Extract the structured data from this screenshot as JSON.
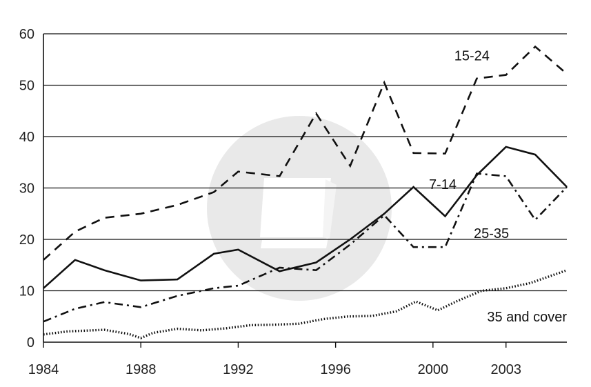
{
  "chart_data": {
    "type": "line",
    "title": "",
    "xlabel": "",
    "ylabel": "",
    "xlim": [
      1984,
      2005.5
    ],
    "ylim": [
      0,
      60
    ],
    "grid": "horizontal",
    "legend": "inline labels",
    "x_ticks": [
      1984,
      1988,
      1992,
      1996,
      2000,
      2003
    ],
    "y_ticks": [
      0,
      10,
      20,
      30,
      40,
      50,
      60
    ],
    "watermark_icon": "book-logo-watermark",
    "series": [
      {
        "name": "15-24",
        "style": "dashed",
        "color": "#111111",
        "x": [
          1984,
          1985.3,
          1986.5,
          1988,
          1989.5,
          1991,
          1992,
          1993.7,
          1995.2,
          1996.6,
          1998,
          1999.2,
          2000.5,
          2001.8,
          2003,
          2004.2,
          2005.5
        ],
        "y": [
          16,
          21.5,
          24.2,
          25,
          26.7,
          29.2,
          33.2,
          32.3,
          44.5,
          34.3,
          50.5,
          36.8,
          36.7,
          51.3,
          52,
          57.5,
          52.2
        ]
      },
      {
        "name": "7-14",
        "style": "solid",
        "color": "#111111",
        "x": [
          1984,
          1985.3,
          1986.5,
          1988,
          1989.5,
          1991,
          1992,
          1993.7,
          1995.2,
          1996.6,
          1998,
          1999.2,
          2000.5,
          2001.8,
          2003,
          2004.2,
          2005.5
        ],
        "y": [
          10.5,
          16,
          14,
          12,
          12.2,
          17.2,
          18,
          13.8,
          15.5,
          20,
          25,
          30.2,
          24.5,
          32.5,
          38,
          36.5,
          30.2
        ]
      },
      {
        "name": "25-35",
        "style": "dash-dot",
        "color": "#111111",
        "x": [
          1984,
          1985.3,
          1986.5,
          1988,
          1989.5,
          1991,
          1992,
          1993.7,
          1995.2,
          1996.6,
          1998,
          1999.2,
          2000.5,
          2001.8,
          2003,
          2004.2,
          2005.5
        ],
        "y": [
          4,
          6.5,
          7.8,
          6.8,
          9,
          10.5,
          11,
          14.5,
          14,
          19,
          24.7,
          18.5,
          18.5,
          32.8,
          32.3,
          23.8,
          30.2
        ]
      },
      {
        "name": "35 and cover",
        "style": "dotted",
        "color": "#111111",
        "x": [
          1984,
          1985,
          1986.5,
          1987.5,
          1988,
          1988.5,
          1989.5,
          1990.5,
          1991.5,
          1992.5,
          1993.5,
          1994.5,
          1995.5,
          1996.5,
          1997.5,
          1998.5,
          1999.3,
          2000.2,
          2001,
          2002,
          2003,
          2004,
          2005.5
        ],
        "y": [
          1.5,
          2.1,
          2.4,
          1.6,
          0.8,
          1.8,
          2.6,
          2.3,
          2.7,
          3.3,
          3.4,
          3.6,
          4.5,
          5.0,
          5.1,
          6.0,
          7.9,
          6.2,
          8.0,
          10.0,
          10.5,
          11.5,
          14.0
        ]
      }
    ]
  }
}
